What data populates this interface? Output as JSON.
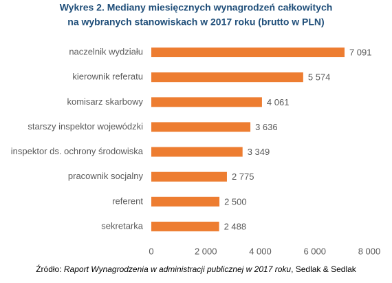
{
  "chart_data": {
    "type": "bar",
    "orientation": "horizontal",
    "title": [
      "Wykres 2. Mediany miesięcznych wynagrodzeń całkowitych",
      "na wybranych stanowiskach w 2017 roku (brutto w PLN)"
    ],
    "categories": [
      "naczelnik wydziału",
      "kierownik referatu",
      "komisarz skarbowy",
      "starszy inspektor wojewódzki",
      "inspektor ds. ochrony środowiska",
      "pracownik socjalny",
      "referent",
      "sekretarka"
    ],
    "values": [
      7091,
      5574,
      4061,
      3636,
      3349,
      2775,
      2500,
      2488
    ],
    "value_labels": [
      "7 091",
      "5 574",
      "4 061",
      "3 636",
      "3 349",
      "2 775",
      "2 500",
      "2 488"
    ],
    "color": "#ed7d31",
    "xlim": [
      0,
      8000
    ],
    "xticks": [
      0,
      {
        "value": 2000,
        "label": "2 000"
      },
      {
        "value": 4000,
        "label": "4 000"
      },
      {
        "value": 6000,
        "label": "6 000"
      },
      {
        "value": 8000,
        "label": "8 000"
      }
    ],
    "grid": false,
    "source": {
      "prefix": "Źródło:",
      "italic": "Raport Wynagrodzenia w administracji publicznej w 2017 roku",
      "suffix": ", Sedlak & Sedlak"
    }
  }
}
